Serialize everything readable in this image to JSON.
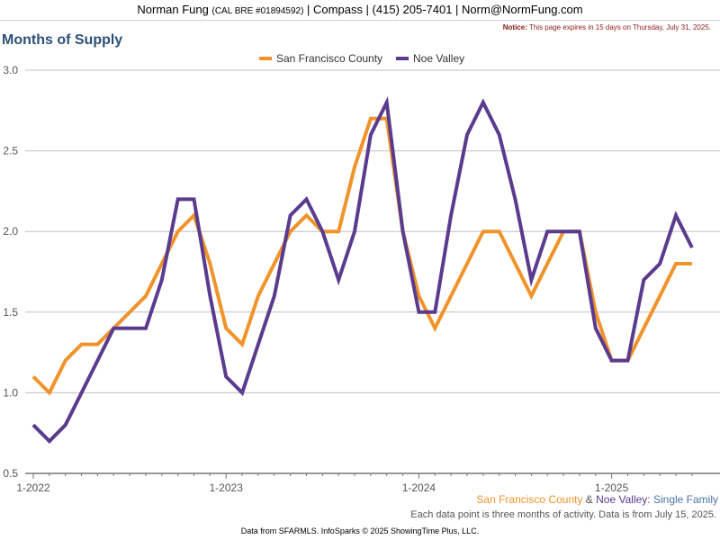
{
  "header": {
    "name": "Norman Fung",
    "license": "(CAL BRE #01894592)",
    "rest": "| Compass | (415) 205-7401 | Norm@NormFung.com"
  },
  "notice": {
    "label": "Notice:",
    "text": "This page expires in 15 days on Thursday, July 31, 2025."
  },
  "title": "Months of Supply",
  "subtitle": {
    "area1": "San Francisco County",
    "amp": " & ",
    "area2": "Noe Valley",
    "colon": ":",
    "type": "Single Family"
  },
  "note": "Each data point is three months of activity. Data is from July 15, 2025.",
  "footer": "Data from SFARMLS. InfoSparks © 2025 ShowingTime Plus, LLC.",
  "colors": {
    "sf": "#f0932a",
    "noe": "#5a3b8e",
    "title": "#2b5078",
    "subtitle_type": "#4a74a8"
  },
  "chart_data": {
    "type": "line",
    "x": [
      "2022-01",
      "2022-02",
      "2022-03",
      "2022-04",
      "2022-05",
      "2022-06",
      "2022-07",
      "2022-08",
      "2022-09",
      "2022-10",
      "2022-11",
      "2022-12",
      "2023-01",
      "2023-02",
      "2023-03",
      "2023-04",
      "2023-05",
      "2023-06",
      "2023-07",
      "2023-08",
      "2023-09",
      "2023-10",
      "2023-11",
      "2023-12",
      "2024-01",
      "2024-02",
      "2024-03",
      "2024-04",
      "2024-05",
      "2024-06",
      "2024-07",
      "2024-08",
      "2024-09",
      "2024-10",
      "2024-11",
      "2024-12",
      "2025-01",
      "2025-02",
      "2025-03",
      "2025-04",
      "2025-05",
      "2025-06"
    ],
    "series": [
      {
        "name": "San Francisco County",
        "values": [
          1.1,
          1.0,
          1.2,
          1.3,
          1.3,
          1.4,
          1.5,
          1.6,
          1.8,
          2.0,
          2.1,
          1.8,
          1.4,
          1.3,
          1.6,
          1.8,
          2.0,
          2.1,
          2.0,
          2.0,
          2.4,
          2.7,
          2.7,
          2.0,
          1.6,
          1.4,
          1.6,
          1.8,
          2.0,
          2.0,
          1.8,
          1.6,
          1.8,
          2.0,
          2.0,
          1.5,
          1.2,
          1.2,
          1.4,
          1.6,
          1.8,
          1.8
        ]
      },
      {
        "name": "Noe Valley",
        "values": [
          0.8,
          0.7,
          0.8,
          1.0,
          1.2,
          1.4,
          1.4,
          1.4,
          1.7,
          2.2,
          2.2,
          1.6,
          1.1,
          1.0,
          1.3,
          1.6,
          2.1,
          2.2,
          2.0,
          1.7,
          2.0,
          2.6,
          2.8,
          2.0,
          1.5,
          1.5,
          2.1,
          2.6,
          2.8,
          2.6,
          2.2,
          1.7,
          2.0,
          2.0,
          2.0,
          1.4,
          1.2,
          1.2,
          1.7,
          1.8,
          2.1,
          1.9
        ]
      }
    ],
    "x_tick_labels": [
      "1-2022",
      "1-2023",
      "1-2024",
      "1-2025"
    ],
    "y_tick_labels": [
      "0.5",
      "1.0",
      "1.5",
      "2.0",
      "2.5",
      "3.0"
    ],
    "ylim": [
      0.5,
      3.0
    ],
    "grid": true,
    "legend": "top-center"
  }
}
